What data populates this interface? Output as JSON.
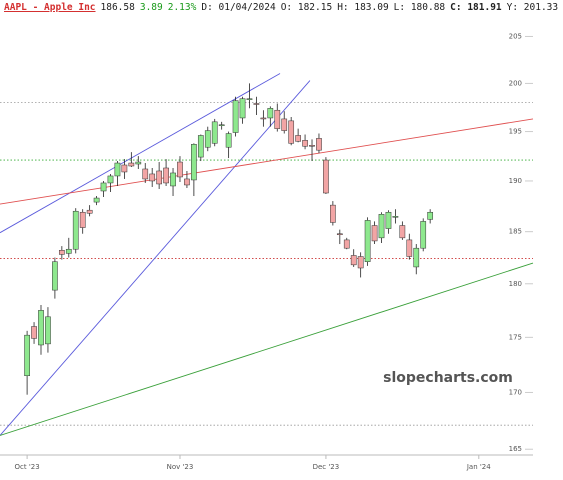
{
  "chart_data": {
    "type": "candlestick",
    "header": {
      "symbol": "AAPL - Apple Inc",
      "last": "186.58",
      "change": "3.89",
      "change_pct": "2.13%",
      "date": "D: 01/04/2024",
      "open": "O: 182.15",
      "high": "H: 183.09",
      "low": "L: 180.88",
      "close": "C: 181.91",
      "prev": "Y: 201.33"
    },
    "watermark": "slopecharts.com",
    "log_scale": true,
    "ylim": [
      164.5,
      207
    ],
    "yticks": [
      165,
      170,
      175,
      180,
      185,
      190,
      195,
      200,
      205
    ],
    "xlim": [
      -3.9,
      72.8
    ],
    "xticks": [
      {
        "value": 0,
        "label": "Oct '23"
      },
      {
        "value": 22,
        "label": "Nov '23"
      },
      {
        "value": 43,
        "label": "Dec '23"
      },
      {
        "value": 65,
        "label": "Jan '24"
      }
    ],
    "up_color": "#8ee88e",
    "down_color": "#f2a5a5",
    "open": [
      171.5,
      176.0,
      174.3,
      174.4,
      179.4,
      183.2,
      182.9,
      183.3,
      186.9,
      187.1,
      187.9,
      189.0,
      189.8,
      190.5,
      191.6,
      191.8,
      191.7,
      191.2,
      190.7,
      191.0,
      191.3,
      189.5,
      191.9,
      190.2,
      190.1,
      192.4,
      193.4,
      193.8,
      195.6,
      193.4,
      194.9,
      196.4,
      198.3,
      197.9,
      196.4,
      196.4,
      197.2,
      196.3,
      196.1,
      194.6,
      194.1,
      193.6,
      194.3,
      192.1,
      187.6,
      184.8,
      184.2,
      182.7,
      182.6,
      182.1,
      185.6,
      184.4,
      185.3,
      186.5,
      185.6,
      184.2,
      181.6,
      183.4,
      186.2
    ],
    "high": [
      175.6,
      176.4,
      178.0,
      177.8,
      182.5,
      183.6,
      184.4,
      187.3,
      187.2,
      187.6,
      188.5,
      190.0,
      190.7,
      192.0,
      192.2,
      192.9,
      192.5,
      191.8,
      191.3,
      191.9,
      192.2,
      191.3,
      192.5,
      191.0,
      193.8,
      194.7,
      195.5,
      196.3,
      196.0,
      195.0,
      198.6,
      198.6,
      200.0,
      198.6,
      197.2,
      197.6,
      197.9,
      197.1,
      196.5,
      195.3,
      194.7,
      194.2,
      194.8,
      192.4,
      188.0,
      185.2,
      184.4,
      183.3,
      183.0,
      186.4,
      186.0,
      186.9,
      187.1,
      187.2,
      186.0,
      184.8,
      183.8,
      186.3,
      187.2
    ],
    "low": [
      169.8,
      174.4,
      173.4,
      173.6,
      178.6,
      182.3,
      182.5,
      182.9,
      184.8,
      186.5,
      187.6,
      188.4,
      188.9,
      189.5,
      190.2,
      191.4,
      191.2,
      189.8,
      189.4,
      189.2,
      189.5,
      188.5,
      189.9,
      189.3,
      188.5,
      192.0,
      193.0,
      193.5,
      195.2,
      192.3,
      194.5,
      195.8,
      197.4,
      196.7,
      195.5,
      195.5,
      195.0,
      194.8,
      193.6,
      193.9,
      193.2,
      192.0,
      192.8,
      188.7,
      185.6,
      183.8,
      183.3,
      181.6,
      180.6,
      181.7,
      183.8,
      183.9,
      184.8,
      185.8,
      184.2,
      182.3,
      180.9,
      183.1,
      185.8
    ],
    "close": [
      175.2,
      174.9,
      177.5,
      176.9,
      182.1,
      182.8,
      183.3,
      187.0,
      185.4,
      186.8,
      188.3,
      189.8,
      190.5,
      191.8,
      190.9,
      191.5,
      191.9,
      190.2,
      190.0,
      189.7,
      189.8,
      190.8,
      190.4,
      189.6,
      193.7,
      194.6,
      195.1,
      196.0,
      195.7,
      194.8,
      198.2,
      198.4,
      198.4,
      197.8,
      196.3,
      197.4,
      195.3,
      195.1,
      193.8,
      194.0,
      193.5,
      193.5,
      193.1,
      188.8,
      185.9,
      184.7,
      183.4,
      181.8,
      181.5,
      186.1,
      184.1,
      186.7,
      186.9,
      186.5,
      184.4,
      182.6,
      183.4,
      186.0,
      186.9
    ],
    "trendlines": [
      {
        "color": "#5b5bdc",
        "x": [
          -3.9,
          36.4
        ],
        "y": [
          184.9,
          201.05
        ]
      },
      {
        "color": "#5b5bdc",
        "x": [
          -3.9,
          40.7
        ],
        "y": [
          166.2,
          200.3
        ]
      },
      {
        "color": "#e05050",
        "x": [
          -3.9,
          72.8
        ],
        "y": [
          187.7,
          196.3
        ]
      },
      {
        "color": "#3aa03a",
        "x": [
          -3.9,
          72.8
        ],
        "y": [
          166.2,
          181.97
        ]
      }
    ],
    "hlines": [
      {
        "color": "#999999",
        "value": 198.0
      },
      {
        "color": "#33aa33",
        "value": 192.1
      },
      {
        "color": "#cc3333",
        "value": 182.4
      },
      {
        "color": "#999999",
        "value": 167.1
      }
    ]
  }
}
